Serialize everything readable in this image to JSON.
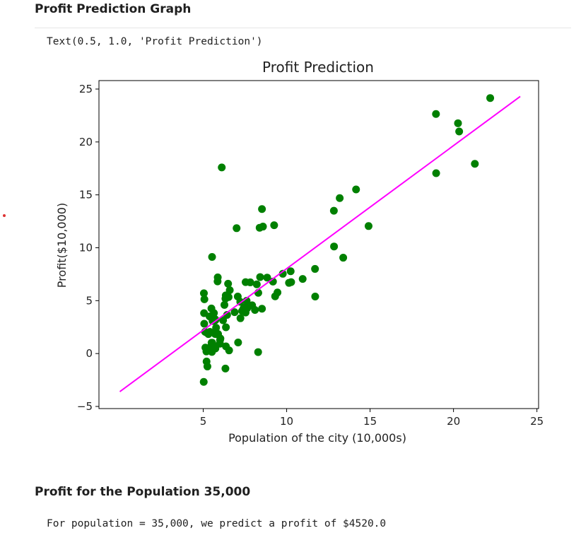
{
  "cells": {
    "graph_heading": "Profit Prediction Graph",
    "text_output": "Text(0.5, 1.0, 'Profit Prediction')",
    "prediction_heading": "Profit for the Population 35,000",
    "prediction_output": "For population = 35,000, we predict a profit of $4520.0"
  },
  "colors": {
    "points": "#008000",
    "line": "#ff00ff",
    "marker_dot": "#dd3333"
  },
  "chart_data": {
    "type": "scatter",
    "title": "Profit Prediction",
    "xlabel": "Population of the city (10,000s)",
    "ylabel": "Profit($10,000)",
    "xlim": [
      -1.25,
      25.1
    ],
    "ylim": [
      -5.2,
      25.8
    ],
    "xticks": [
      5,
      10,
      15,
      20,
      25
    ],
    "yticks": [
      -5,
      0,
      5,
      10,
      15,
      20,
      25
    ],
    "grid": false,
    "series": [
      {
        "kind": "points",
        "points": [
          [
            6.11,
            17.59
          ],
          [
            5.53,
            9.13
          ],
          [
            8.52,
            13.66
          ],
          [
            7.0,
            11.85
          ],
          [
            5.86,
            6.82
          ],
          [
            8.38,
            11.89
          ],
          [
            7.48,
            4.35
          ],
          [
            8.58,
            12.0
          ],
          [
            6.49,
            6.6
          ],
          [
            5.05,
            3.82
          ],
          [
            5.71,
            3.25
          ],
          [
            14.16,
            15.51
          ],
          [
            5.73,
            3.16
          ],
          [
            8.41,
            7.23
          ],
          [
            5.64,
            0.72
          ],
          [
            5.38,
            3.51
          ],
          [
            6.37,
            5.3
          ],
          [
            5.13,
            0.56
          ],
          [
            6.43,
            3.65
          ],
          [
            7.07,
            5.39
          ],
          [
            6.19,
            3.14
          ],
          [
            20.27,
            21.77
          ],
          [
            5.49,
            4.26
          ],
          [
            6.33,
            5.19
          ],
          [
            5.56,
            3.08
          ],
          [
            18.95,
            22.64
          ],
          [
            12.83,
            13.5
          ],
          [
            10.96,
            7.05
          ],
          [
            13.18,
            14.69
          ],
          [
            22.2,
            24.15
          ],
          [
            5.25,
            -1.22
          ],
          [
            6.59,
            5.99
          ],
          [
            9.25,
            12.13
          ],
          [
            5.89,
            1.85
          ],
          [
            8.21,
            6.54
          ],
          [
            7.93,
            4.56
          ],
          [
            8.1,
            4.12
          ],
          [
            5.61,
            3.39
          ],
          [
            12.84,
            10.12
          ],
          [
            6.35,
            5.5
          ],
          [
            5.41,
            0.56
          ],
          [
            6.88,
            3.91
          ],
          [
            11.71,
            5.39
          ],
          [
            5.77,
            2.44
          ],
          [
            7.82,
            6.73
          ],
          [
            7.09,
            1.05
          ],
          [
            5.07,
            5.13
          ],
          [
            5.8,
            1.84
          ],
          [
            11.7,
            8.0
          ],
          [
            5.54,
            1.02
          ],
          [
            7.54,
            6.75
          ],
          [
            5.31,
            1.84
          ],
          [
            7.42,
            4.29
          ],
          [
            7.6,
            4.99
          ],
          [
            6.03,
            1.42
          ],
          [
            6.33,
            -1.42
          ],
          [
            6.36,
            2.48
          ],
          [
            6.27,
            4.6
          ],
          [
            5.64,
            3.83
          ],
          [
            9.31,
            5.41
          ],
          [
            9.45,
            5.77
          ],
          [
            8.83,
            7.18
          ],
          [
            5.18,
            2.0
          ],
          [
            21.28,
            17.93
          ],
          [
            14.91,
            12.05
          ],
          [
            18.96,
            17.05
          ],
          [
            7.22,
            4.89
          ],
          [
            8.3,
            5.74
          ],
          [
            10.24,
            7.78
          ],
          [
            5.5,
            1.02
          ],
          [
            20.34,
            20.99
          ],
          [
            10.14,
            6.68
          ],
          [
            7.33,
            4.03
          ],
          [
            6.01,
            1.28
          ],
          [
            7.23,
            3.34
          ],
          [
            5.03,
            -2.68
          ],
          [
            6.55,
            0.3
          ],
          [
            7.54,
            3.88
          ],
          [
            5.04,
            5.7
          ],
          [
            10.27,
            6.75
          ],
          [
            5.11,
            2.06
          ],
          [
            5.73,
            0.48
          ],
          [
            5.19,
            0.2
          ],
          [
            6.36,
            0.68
          ],
          [
            9.77,
            7.54
          ],
          [
            6.52,
            5.34
          ],
          [
            8.52,
            4.24
          ],
          [
            9.18,
            6.8
          ],
          [
            6.0,
            0.93
          ],
          [
            5.52,
            0.15
          ],
          [
            5.06,
            2.82
          ],
          [
            5.71,
            1.85
          ],
          [
            7.64,
            4.3
          ],
          [
            5.87,
            7.2
          ],
          [
            5.31,
            1.99
          ],
          [
            8.29,
            0.14
          ],
          [
            13.39,
            9.06
          ],
          [
            5.44,
            0.62
          ],
          [
            5.2,
            -0.75
          ],
          [
            5.4,
            2.05
          ]
        ]
      },
      {
        "kind": "line",
        "points": [
          [
            0,
            -3.6
          ],
          [
            24,
            24.3
          ]
        ]
      }
    ]
  }
}
